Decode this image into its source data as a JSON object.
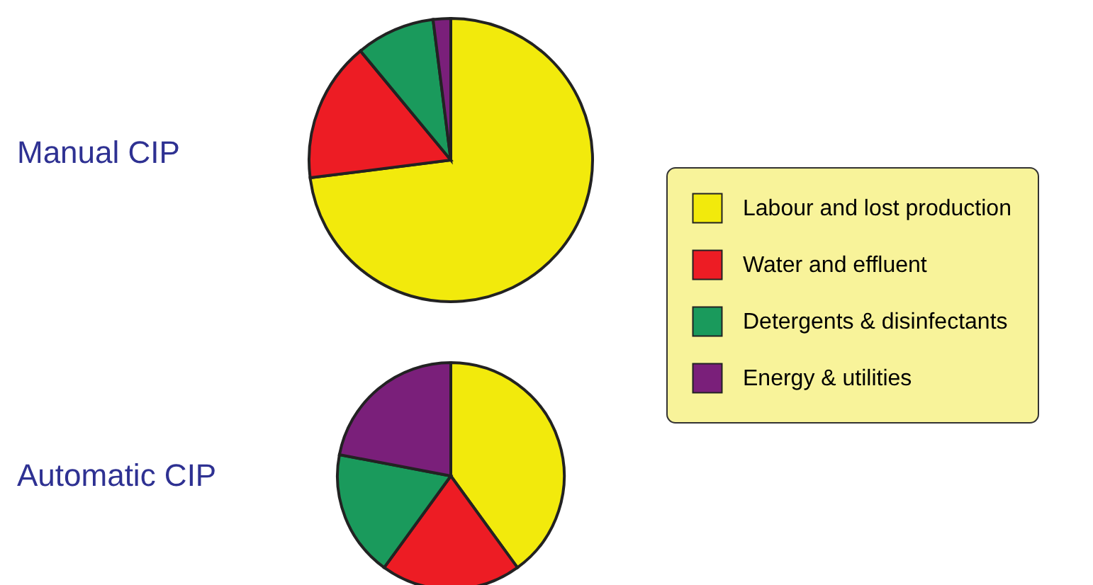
{
  "chart_data": [
    {
      "type": "pie",
      "title": "Manual CIP",
      "categories": [
        "Labour and lost production",
        "Water and effluent",
        "Detergents & disinfectants",
        "Energy & utilities"
      ],
      "values": [
        73,
        16,
        9,
        2
      ],
      "colors": [
        "#f2ea0c",
        "#ed1c24",
        "#1a9a5c",
        "#7a1f7a"
      ],
      "legend": "right"
    },
    {
      "type": "pie",
      "title": "Automatic CIP",
      "categories": [
        null,
        null,
        null,
        null
      ],
      "values": [
        40,
        20,
        18,
        22
      ],
      "colors": [
        "#f2ea0c",
        "#ed1c24",
        "#1a9a5c",
        "#7a1f7a"
      ]
    }
  ]
}
